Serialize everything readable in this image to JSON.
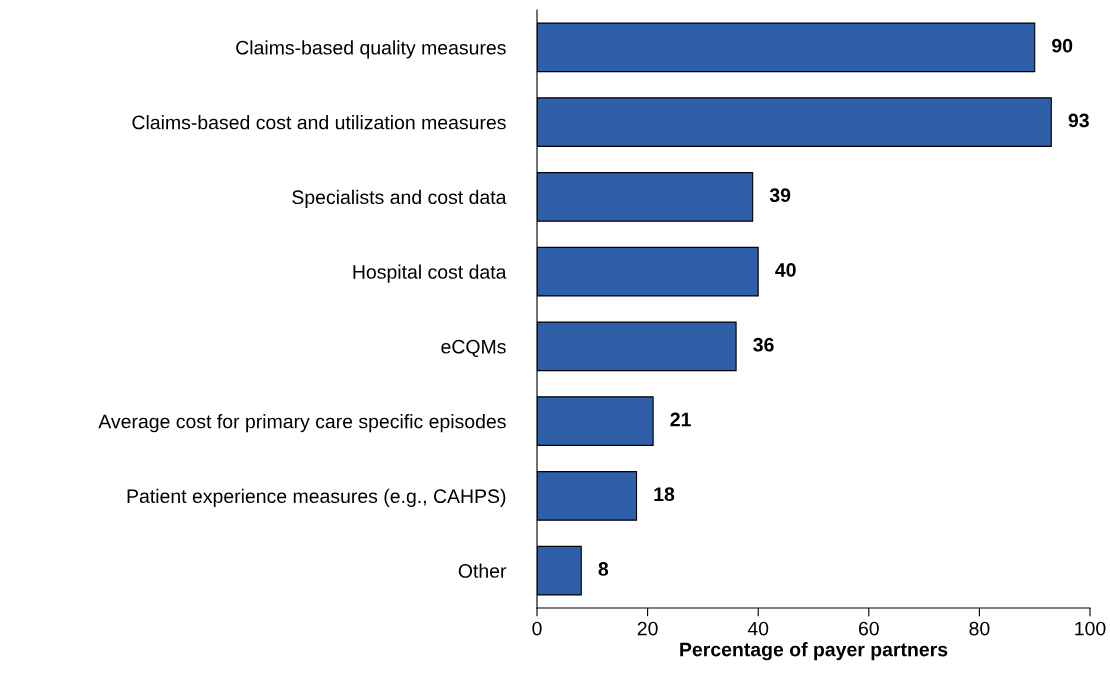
{
  "chart_data": {
    "type": "bar",
    "orientation": "horizontal",
    "xlabel": "Percentage of payer partners",
    "categories": [
      "Claims-based quality measures",
      "Claims-based cost and utilization measures",
      "Specialists and cost data",
      "Hospital cost data",
      "eCQMs",
      "Average cost for primary care specific episodes",
      "Patient experience measures (e.g., CAHPS)",
      "Other"
    ],
    "values": [
      90,
      93,
      39,
      40,
      36,
      21,
      18,
      8
    ],
    "color": "#2e5fa8",
    "xlim": [
      0,
      100
    ],
    "xticks": [
      0,
      20,
      40,
      60,
      80,
      100
    ],
    "grid": false,
    "data_labels": true
  }
}
